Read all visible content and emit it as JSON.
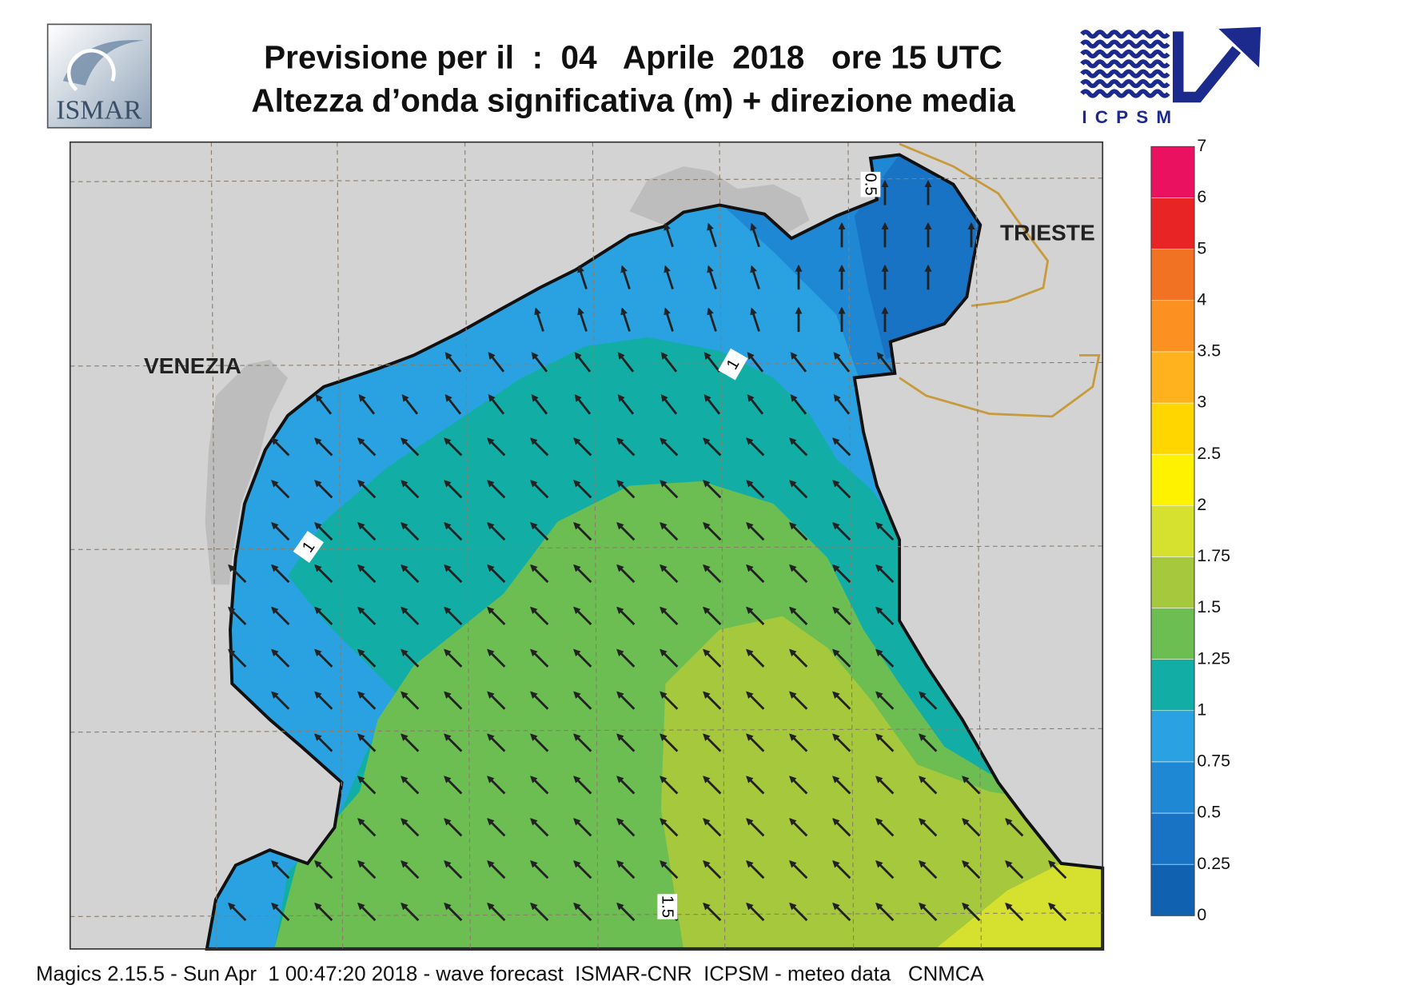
{
  "header": {
    "title_line1": "Previsione per il  :  04   Aprile  2018   ore 15 UTC",
    "title_line2": "Altezza d’onda significativa (m) + direzione media"
  },
  "logos": {
    "left": "ISMAR",
    "right": "ICPSM"
  },
  "map": {
    "place_labels": [
      "VENEZIA",
      "TRIESTE"
    ],
    "contour_labels": [
      "1",
      "1",
      "1.5",
      "0.5"
    ]
  },
  "colorbar": {
    "levels": [
      0,
      0.25,
      0.5,
      0.75,
      1,
      1.25,
      1.5,
      1.75,
      2,
      2.5,
      3,
      3.5,
      4,
      5,
      6,
      7
    ],
    "colors": [
      "#1062b0",
      "#1873c4",
      "#1f88d4",
      "#2aa2e2",
      "#12aea6",
      "#6cbd52",
      "#a6c83c",
      "#d6e02e",
      "#fff200",
      "#ffd600",
      "#ffb21e",
      "#fc9020",
      "#f07222",
      "#e82424",
      "#ea1260"
    ]
  },
  "footer": "Magics 2.15.5 - Sun Apr  1 00:47:20 2018 - wave forecast  ISMAR-CNR  ICPSM - meteo data   CNMCA"
}
